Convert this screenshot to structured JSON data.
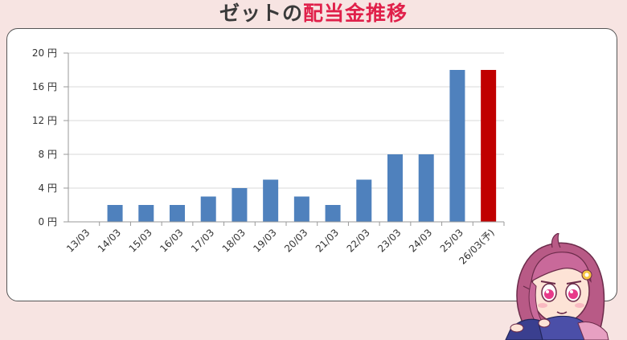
{
  "title": {
    "prefix": "ゼットの",
    "accent": "配当金推移"
  },
  "colors": {
    "background": "#f7e4e2",
    "accent": "#e0204a",
    "bar": "#4f81bd",
    "bar_forecast": "#c00000"
  },
  "chart_data": {
    "type": "bar",
    "title": "",
    "xlabel": "",
    "ylabel": "",
    "categories": [
      "13/03",
      "14/03",
      "15/03",
      "16/03",
      "17/03",
      "18/03",
      "19/03",
      "20/03",
      "21/03",
      "22/03",
      "23/03",
      "24/03",
      "25/03",
      "26/03(予)"
    ],
    "values": [
      0,
      2,
      2,
      2,
      3,
      4,
      5,
      3,
      2,
      5,
      8,
      8,
      18,
      18
    ],
    "forecast_index": 13,
    "ylim": [
      0,
      20
    ],
    "yticks": [
      0,
      4,
      8,
      12,
      16,
      20
    ],
    "ytick_labels": [
      "0 円",
      "4 円",
      "8 円",
      "12 円",
      "16 円",
      "20 円"
    ],
    "grid": true,
    "legend": "none"
  },
  "mascot": {
    "icon": "girl-mascot-icon"
  }
}
